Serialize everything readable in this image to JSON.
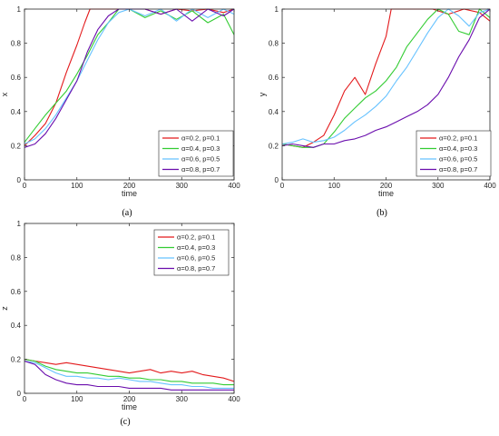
{
  "colors": {
    "axis": "#262626",
    "background": "#ffffff"
  },
  "chart_data": [
    {
      "type": "line",
      "panel_label": "(a)",
      "xlabel": "time",
      "ylabel": "x",
      "xlim": [
        0,
        400
      ],
      "ylim": [
        0,
        1
      ],
      "xticks": [
        0,
        100,
        200,
        300,
        400
      ],
      "yticks": [
        0,
        0.2,
        0.4,
        0.6,
        0.8,
        1
      ],
      "grid": false,
      "legend_position": "bottom-right",
      "series": [
        {
          "name": "α=0.2, p=0.1",
          "color": "#e31a1c",
          "x": [
            0,
            20,
            40,
            60,
            80,
            100,
            115,
            125,
            135,
            150,
            170,
            200,
            230,
            260,
            290,
            320,
            350,
            380,
            400
          ],
          "y": [
            0.2,
            0.26,
            0.33,
            0.45,
            0.63,
            0.79,
            0.92,
            1.0,
            1.0,
            1.0,
            1.0,
            1.0,
            1.0,
            0.97,
            1.0,
            0.99,
            1.0,
            0.98,
            1.0
          ]
        },
        {
          "name": "α=0.4, p=0.3",
          "color": "#33cc33",
          "x": [
            0,
            20,
            40,
            60,
            80,
            100,
            120,
            140,
            160,
            180,
            200,
            230,
            260,
            290,
            320,
            350,
            380,
            400
          ],
          "y": [
            0.22,
            0.3,
            0.38,
            0.45,
            0.52,
            0.62,
            0.73,
            0.85,
            0.92,
            1.0,
            1.0,
            0.95,
            0.99,
            0.94,
            0.99,
            0.92,
            0.97,
            0.85
          ]
        },
        {
          "name": "α=0.6, p=0.5",
          "color": "#66c2ff",
          "x": [
            0,
            20,
            40,
            60,
            80,
            100,
            120,
            140,
            160,
            180,
            200,
            230,
            260,
            290,
            320,
            350,
            380,
            400
          ],
          "y": [
            0.21,
            0.24,
            0.3,
            0.38,
            0.48,
            0.58,
            0.7,
            0.82,
            0.92,
            0.98,
            1.0,
            0.96,
            1.0,
            0.93,
            1.0,
            0.95,
            1.0,
            0.97
          ]
        },
        {
          "name": "α=0.8, p=0.7",
          "color": "#6a0dad",
          "x": [
            0,
            20,
            40,
            60,
            80,
            100,
            120,
            140,
            160,
            180,
            200,
            230,
            260,
            290,
            320,
            350,
            380,
            400
          ],
          "y": [
            0.19,
            0.21,
            0.27,
            0.36,
            0.47,
            0.58,
            0.75,
            0.88,
            0.96,
            1.0,
            1.0,
            1.0,
            0.97,
            1.0,
            0.93,
            1.0,
            0.96,
            1.0
          ]
        }
      ]
    },
    {
      "type": "line",
      "panel_label": "(b)",
      "xlabel": "time",
      "ylabel": "y",
      "xlim": [
        0,
        400
      ],
      "ylim": [
        0,
        1
      ],
      "xticks": [
        0,
        100,
        200,
        300,
        400
      ],
      "yticks": [
        0,
        0.2,
        0.4,
        0.6,
        0.8,
        1
      ],
      "grid": false,
      "legend_position": "bottom-right",
      "series": [
        {
          "name": "α=0.2, p=0.1",
          "color": "#e31a1c",
          "x": [
            0,
            20,
            40,
            60,
            80,
            100,
            120,
            140,
            160,
            180,
            200,
            210,
            230,
            260,
            290,
            320,
            350,
            380,
            400
          ],
          "y": [
            0.21,
            0.2,
            0.19,
            0.22,
            0.26,
            0.38,
            0.52,
            0.6,
            0.5,
            0.68,
            0.84,
            1.0,
            1.0,
            1.0,
            1.0,
            0.97,
            1.0,
            0.98,
            0.93
          ]
        },
        {
          "name": "α=0.4, p=0.3",
          "color": "#33cc33",
          "x": [
            0,
            20,
            40,
            60,
            80,
            100,
            120,
            140,
            160,
            180,
            200,
            220,
            240,
            260,
            280,
            300,
            320,
            340,
            360,
            380,
            400
          ],
          "y": [
            0.21,
            0.2,
            0.19,
            0.19,
            0.21,
            0.28,
            0.36,
            0.42,
            0.48,
            0.52,
            0.58,
            0.66,
            0.78,
            0.86,
            0.94,
            1.0,
            0.97,
            0.87,
            0.85,
            1.0,
            0.95
          ]
        },
        {
          "name": "α=0.6, p=0.5",
          "color": "#66c2ff",
          "x": [
            0,
            20,
            40,
            60,
            80,
            100,
            120,
            140,
            160,
            180,
            200,
            220,
            240,
            260,
            280,
            300,
            320,
            340,
            360,
            380,
            400
          ],
          "y": [
            0.21,
            0.22,
            0.24,
            0.22,
            0.23,
            0.25,
            0.29,
            0.34,
            0.38,
            0.43,
            0.49,
            0.58,
            0.66,
            0.76,
            0.86,
            0.95,
            1.0,
            0.96,
            0.9,
            0.98,
            1.0
          ]
        },
        {
          "name": "α=0.8, p=0.7",
          "color": "#6a0dad",
          "x": [
            0,
            20,
            40,
            60,
            80,
            100,
            120,
            140,
            160,
            180,
            200,
            220,
            240,
            260,
            280,
            300,
            320,
            340,
            360,
            380,
            400
          ],
          "y": [
            0.2,
            0.21,
            0.2,
            0.19,
            0.21,
            0.21,
            0.23,
            0.24,
            0.26,
            0.29,
            0.31,
            0.34,
            0.37,
            0.4,
            0.44,
            0.5,
            0.6,
            0.72,
            0.82,
            0.95,
            1.0
          ]
        }
      ]
    },
    {
      "type": "line",
      "panel_label": "(c)",
      "xlabel": "time",
      "ylabel": "z",
      "xlim": [
        0,
        400
      ],
      "ylim": [
        0,
        1
      ],
      "xticks": [
        0,
        100,
        200,
        300,
        400
      ],
      "yticks": [
        0,
        0.2,
        0.4,
        0.6,
        0.8,
        1
      ],
      "grid": false,
      "legend_position": "top-right",
      "series": [
        {
          "name": "α=0.2, p=0.1",
          "color": "#e31a1c",
          "x": [
            0,
            20,
            40,
            60,
            80,
            100,
            120,
            140,
            160,
            180,
            200,
            220,
            240,
            260,
            280,
            300,
            320,
            340,
            360,
            380,
            400
          ],
          "y": [
            0.2,
            0.19,
            0.18,
            0.17,
            0.18,
            0.17,
            0.16,
            0.15,
            0.14,
            0.13,
            0.12,
            0.13,
            0.14,
            0.12,
            0.13,
            0.12,
            0.13,
            0.11,
            0.1,
            0.09,
            0.07
          ]
        },
        {
          "name": "α=0.4, p=0.3",
          "color": "#33cc33",
          "x": [
            0,
            20,
            40,
            60,
            80,
            100,
            120,
            140,
            160,
            180,
            200,
            220,
            240,
            260,
            280,
            300,
            320,
            340,
            360,
            380,
            400
          ],
          "y": [
            0.2,
            0.19,
            0.16,
            0.14,
            0.13,
            0.12,
            0.12,
            0.11,
            0.1,
            0.1,
            0.09,
            0.09,
            0.08,
            0.08,
            0.07,
            0.07,
            0.06,
            0.06,
            0.06,
            0.05,
            0.05
          ]
        },
        {
          "name": "α=0.6, p=0.5",
          "color": "#66c2ff",
          "x": [
            0,
            20,
            40,
            60,
            80,
            100,
            120,
            140,
            160,
            180,
            200,
            220,
            240,
            260,
            280,
            300,
            320,
            340,
            360,
            380,
            400
          ],
          "y": [
            0.19,
            0.18,
            0.15,
            0.12,
            0.1,
            0.1,
            0.09,
            0.09,
            0.08,
            0.09,
            0.08,
            0.07,
            0.07,
            0.06,
            0.05,
            0.05,
            0.04,
            0.04,
            0.03,
            0.03,
            0.03
          ]
        },
        {
          "name": "α=0.8, p=0.7",
          "color": "#6a0dad",
          "x": [
            0,
            20,
            40,
            60,
            80,
            100,
            120,
            140,
            160,
            180,
            200,
            220,
            240,
            260,
            280,
            300,
            320,
            340,
            360,
            380,
            400
          ],
          "y": [
            0.19,
            0.17,
            0.11,
            0.08,
            0.06,
            0.05,
            0.05,
            0.04,
            0.04,
            0.04,
            0.03,
            0.03,
            0.03,
            0.03,
            0.02,
            0.02,
            0.02,
            0.02,
            0.02,
            0.02,
            0.02
          ]
        }
      ]
    }
  ]
}
